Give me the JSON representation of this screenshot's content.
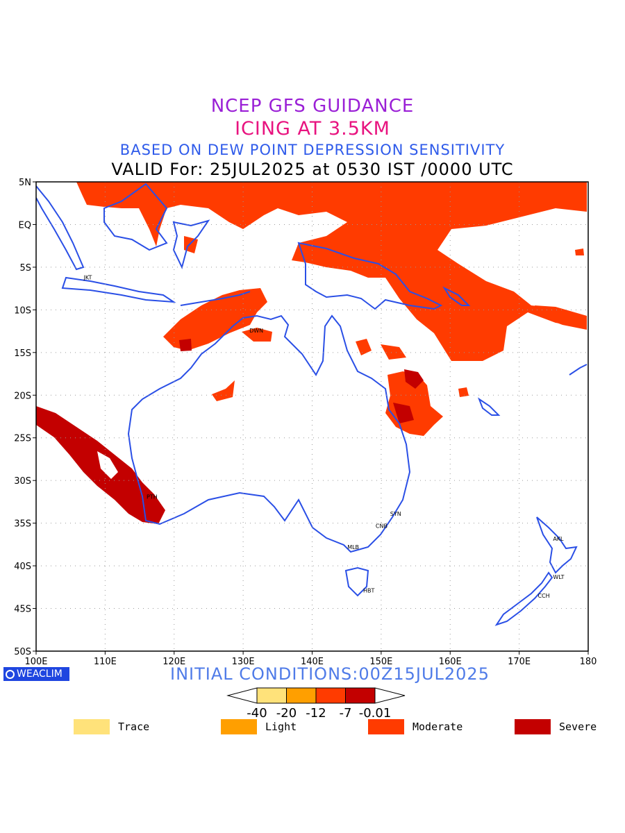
{
  "titles": {
    "line1": "NCEP GFS GUIDANCE",
    "line2": "ICING AT 3.5KM",
    "line3": "BASED ON DEW POINT DEPRESSION SENSITIVITY",
    "line4": "VALID For: 25JUL2025 at 0530 IST /0000 UTC"
  },
  "map": {
    "lon_range": [
      100,
      180
    ],
    "lat_range": [
      -50,
      5
    ],
    "lon_ticks": [
      "100E",
      "110E",
      "120E",
      "130E",
      "140E",
      "150E",
      "160E",
      "170E",
      "180"
    ],
    "lat_ticks": [
      "5N",
      "EQ",
      "5S",
      "10S",
      "15S",
      "20S",
      "25S",
      "30S",
      "35S",
      "40S",
      "45S",
      "50S"
    ],
    "coastline_color": "#2a4fe6",
    "grid": "dotted",
    "cities": [
      {
        "code": "JKT",
        "lon": 106.8,
        "lat": -6.2
      },
      {
        "code": "DWN",
        "lon": 130.8,
        "lat": -12.4
      },
      {
        "code": "PTH",
        "lon": 115.9,
        "lat": -31.9
      },
      {
        "code": "SYN",
        "lon": 151.2,
        "lat": -33.9
      },
      {
        "code": "CNB",
        "lon": 149.1,
        "lat": -35.3
      },
      {
        "code": "MLB",
        "lon": 145.0,
        "lat": -37.8
      },
      {
        "code": "HBT",
        "lon": 147.3,
        "lat": -42.9
      },
      {
        "code": "AKL",
        "lon": 174.8,
        "lat": -36.8
      },
      {
        "code": "WLT",
        "lon": 174.8,
        "lat": -41.3
      },
      {
        "code": "CCH",
        "lon": 172.6,
        "lat": -43.5
      }
    ]
  },
  "brand": "WEACLIM",
  "initial_conditions": "INITIAL CONDITIONS:00Z15JUL2025",
  "colorbar": {
    "labels": [
      "-40",
      "-20",
      "-12",
      "-7",
      "-0.01"
    ],
    "colors": [
      "#ffe27a",
      "#ff9f00",
      "#ff3b00",
      "#c30000"
    ]
  },
  "legend": [
    {
      "label": "Trace",
      "color": "#ffe27a"
    },
    {
      "label": "Light",
      "color": "#ff9f00"
    },
    {
      "label": "Moderate",
      "color": "#ff3b00"
    },
    {
      "label": "Severe",
      "color": "#c30000"
    }
  ]
}
